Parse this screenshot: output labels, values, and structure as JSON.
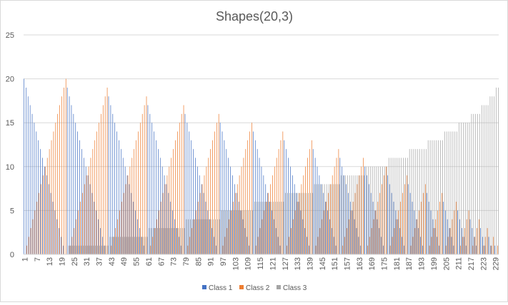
{
  "chart_data": {
    "type": "bar",
    "title": "Shapes(20,3)",
    "xlabel": "",
    "ylabel": "",
    "ylim": [
      0,
      25
    ],
    "yticks": [
      0,
      5,
      10,
      15,
      20,
      25
    ],
    "x_start": 1,
    "x_end": 230,
    "xtick_labels": [
      "1",
      "7",
      "13",
      "19",
      "25",
      "31",
      "37",
      "43",
      "49",
      "55",
      "61",
      "67",
      "73",
      "79",
      "85",
      "91",
      "97",
      "103",
      "109",
      "115",
      "121",
      "127",
      "133",
      "139",
      "145",
      "151",
      "157",
      "163",
      "169",
      "175",
      "181",
      "187",
      "193",
      "199",
      "205",
      "211",
      "217",
      "223",
      "229"
    ],
    "grid": true,
    "legend_position": "bottom",
    "series": [
      {
        "name": "Class 1",
        "color": "#4472C4",
        "values": [
          20,
          19,
          18,
          17,
          16,
          15,
          14,
          13,
          12,
          11,
          10,
          9,
          8,
          7,
          6,
          5,
          4,
          3,
          2,
          1,
          0,
          19,
          18,
          17,
          16,
          15,
          14,
          13,
          12,
          11,
          10,
          9,
          8,
          7,
          6,
          5,
          4,
          3,
          2,
          1,
          0,
          18,
          17,
          16,
          15,
          14,
          13,
          12,
          11,
          10,
          9,
          8,
          7,
          6,
          5,
          4,
          3,
          2,
          1,
          0,
          17,
          16,
          15,
          14,
          13,
          12,
          11,
          10,
          9,
          8,
          7,
          6,
          5,
          4,
          3,
          2,
          1,
          0,
          16,
          15,
          14,
          13,
          12,
          11,
          10,
          9,
          8,
          7,
          6,
          5,
          4,
          3,
          2,
          1,
          0,
          15,
          14,
          13,
          12,
          11,
          10,
          9,
          8,
          7,
          6,
          5,
          4,
          3,
          2,
          1,
          0,
          14,
          13,
          12,
          11,
          10,
          9,
          8,
          7,
          6,
          5,
          4,
          3,
          2,
          1,
          0,
          13,
          12,
          11,
          10,
          9,
          8,
          7,
          6,
          5,
          4,
          3,
          2,
          1,
          0,
          12,
          11,
          10,
          9,
          8,
          7,
          6,
          5,
          4,
          3,
          2,
          1,
          0,
          11,
          10,
          9,
          8,
          7,
          6,
          5,
          4,
          3,
          2,
          1,
          0,
          10,
          9,
          8,
          7,
          6,
          5,
          4,
          3,
          2,
          1,
          0,
          9,
          8,
          7,
          6,
          5,
          4,
          3,
          2,
          1,
          0,
          8,
          7,
          6,
          5,
          4,
          3,
          2,
          1,
          0,
          7,
          6,
          5,
          4,
          3,
          2,
          1,
          0,
          6,
          5,
          4,
          3,
          2,
          1,
          0,
          5,
          4,
          3,
          2,
          1,
          0,
          4,
          3,
          2,
          1,
          0,
          3,
          2,
          1,
          0,
          2,
          1,
          0,
          1,
          0
        ]
      },
      {
        "name": "Class 2",
        "color": "#ED7D31",
        "values": [
          0,
          1,
          2,
          3,
          4,
          5,
          6,
          7,
          8,
          9,
          10,
          11,
          12,
          13,
          14,
          15,
          16,
          17,
          18,
          19,
          20,
          0,
          1,
          2,
          3,
          4,
          5,
          6,
          7,
          8,
          9,
          10,
          11,
          12,
          13,
          14,
          15,
          16,
          17,
          18,
          19,
          0,
          1,
          2,
          3,
          4,
          5,
          6,
          7,
          8,
          9,
          10,
          11,
          12,
          13,
          14,
          15,
          16,
          17,
          18,
          0,
          1,
          2,
          3,
          4,
          5,
          6,
          7,
          8,
          9,
          10,
          11,
          12,
          13,
          14,
          15,
          16,
          17,
          0,
          1,
          2,
          3,
          4,
          5,
          6,
          7,
          8,
          9,
          10,
          11,
          12,
          13,
          14,
          15,
          16,
          0,
          1,
          2,
          3,
          4,
          5,
          6,
          7,
          8,
          9,
          10,
          11,
          12,
          13,
          14,
          15,
          0,
          1,
          2,
          3,
          4,
          5,
          6,
          7,
          8,
          9,
          10,
          11,
          12,
          13,
          14,
          0,
          1,
          2,
          3,
          4,
          5,
          6,
          7,
          8,
          9,
          10,
          11,
          12,
          13,
          0,
          1,
          2,
          3,
          4,
          5,
          6,
          7,
          8,
          9,
          10,
          11,
          12,
          0,
          1,
          2,
          3,
          4,
          5,
          6,
          7,
          8,
          9,
          10,
          11,
          0,
          1,
          2,
          3,
          4,
          5,
          6,
          7,
          8,
          9,
          10,
          0,
          1,
          2,
          3,
          4,
          5,
          6,
          7,
          8,
          9,
          0,
          1,
          2,
          3,
          4,
          5,
          6,
          7,
          8,
          0,
          1,
          2,
          3,
          4,
          5,
          6,
          7,
          0,
          1,
          2,
          3,
          4,
          5,
          6,
          0,
          1,
          2,
          3,
          4,
          5,
          0,
          1,
          2,
          3,
          4,
          0,
          1,
          2,
          3,
          0,
          1,
          2,
          0,
          1
        ]
      },
      {
        "name": "Class 3",
        "color": "#A5A5A5",
        "values": [
          0,
          0,
          0,
          0,
          0,
          0,
          0,
          0,
          0,
          0,
          0,
          0,
          0,
          0,
          0,
          0,
          0,
          0,
          0,
          0,
          0,
          1,
          1,
          1,
          1,
          1,
          1,
          1,
          1,
          1,
          1,
          1,
          1,
          1,
          1,
          1,
          1,
          1,
          1,
          1,
          1,
          2,
          2,
          2,
          2,
          2,
          2,
          2,
          2,
          2,
          2,
          2,
          2,
          2,
          2,
          2,
          2,
          2,
          2,
          2,
          3,
          3,
          3,
          3,
          3,
          3,
          3,
          3,
          3,
          3,
          3,
          3,
          3,
          3,
          3,
          3,
          3,
          3,
          4,
          4,
          4,
          4,
          4,
          4,
          4,
          4,
          4,
          4,
          4,
          4,
          4,
          4,
          4,
          4,
          4,
          5,
          5,
          5,
          5,
          5,
          5,
          5,
          5,
          5,
          5,
          5,
          5,
          5,
          5,
          5,
          5,
          6,
          6,
          6,
          6,
          6,
          6,
          6,
          6,
          6,
          6,
          6,
          6,
          6,
          6,
          6,
          7,
          7,
          7,
          7,
          7,
          7,
          7,
          7,
          7,
          7,
          7,
          7,
          7,
          7,
          8,
          8,
          8,
          8,
          8,
          8,
          8,
          8,
          8,
          8,
          8,
          8,
          8,
          9,
          9,
          9,
          9,
          9,
          9,
          9,
          9,
          9,
          9,
          9,
          9,
          10,
          10,
          10,
          10,
          10,
          10,
          10,
          10,
          10,
          10,
          10,
          11,
          11,
          11,
          11,
          11,
          11,
          11,
          11,
          11,
          11,
          12,
          12,
          12,
          12,
          12,
          12,
          12,
          12,
          12,
          13,
          13,
          13,
          13,
          13,
          13,
          13,
          13,
          14,
          14,
          14,
          14,
          14,
          14,
          14,
          15,
          15,
          15,
          15,
          15,
          15,
          16,
          16,
          16,
          16,
          16,
          17,
          17,
          17,
          17,
          18,
          18,
          18,
          19,
          19
        ]
      }
    ]
  }
}
